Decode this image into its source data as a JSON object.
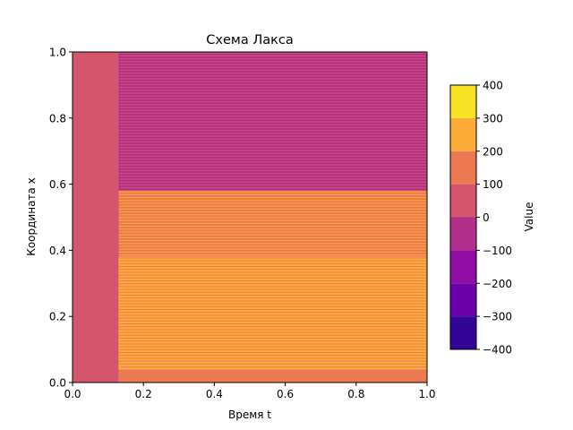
{
  "chart_data": {
    "type": "heatmap",
    "title": "Схема Лакса",
    "xlabel": "Время t",
    "ylabel": "Координата x",
    "xlim": [
      0.0,
      1.0
    ],
    "ylim": [
      0.0,
      1.0
    ],
    "x_ticks": [
      "0.0",
      "0.2",
      "0.4",
      "0.6",
      "0.8",
      "1.0"
    ],
    "y_ticks": [
      "0.0",
      "0.2",
      "0.4",
      "0.6",
      "0.8",
      "1.0"
    ],
    "grid": false,
    "fill_type": "filled-contour",
    "colorbar": {
      "label": "Value",
      "levels": [
        -400,
        -300,
        -200,
        -100,
        0,
        100,
        200,
        300,
        400
      ],
      "tick_labels": [
        "−400",
        "−300",
        "−200",
        "−100",
        "0",
        "100",
        "200",
        "300",
        "400"
      ],
      "colors": [
        "#330597",
        "#6a00a8",
        "#8f0da4",
        "#b2308b",
        "#d5546e",
        "#ed7953",
        "#fbab38",
        "#f7e225"
      ]
    },
    "regions": [
      {
        "name": "initial-band",
        "t_range": [
          0.0,
          0.13
        ],
        "x_range": [
          0.0,
          1.0
        ],
        "value_range": [
          0,
          100
        ]
      },
      {
        "name": "upper-region",
        "t_range": [
          0.13,
          1.0
        ],
        "x_range": [
          0.58,
          1.0
        ],
        "value_range": [
          -100,
          0
        ],
        "striped_with": [
          0,
          100
        ]
      },
      {
        "name": "middle-region",
        "t_range": [
          0.13,
          1.0
        ],
        "x_range": [
          0.38,
          0.58
        ],
        "value_range": [
          100,
          200
        ],
        "striped_with": [
          200,
          300
        ]
      },
      {
        "name": "lower-region",
        "t_range": [
          0.13,
          1.0
        ],
        "x_range": [
          0.04,
          0.38
        ],
        "value_range": [
          200,
          300
        ],
        "striped_with": [
          100,
          200
        ]
      },
      {
        "name": "bottom-edge",
        "t_range": [
          0.13,
          1.0
        ],
        "x_range": [
          0.0,
          0.04
        ],
        "value_range": [
          100,
          200
        ]
      }
    ]
  }
}
